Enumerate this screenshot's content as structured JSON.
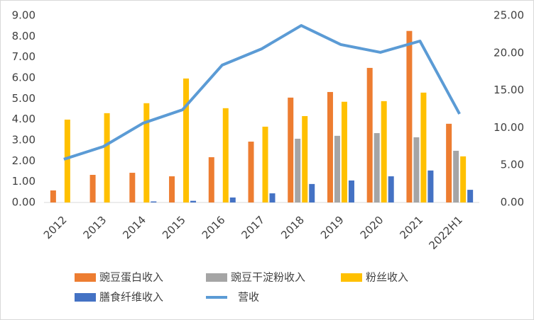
{
  "chart_data": {
    "type": "bar-line",
    "categories": [
      "2012",
      "2013",
      "2014",
      "2015",
      "2016",
      "2017",
      "2018",
      "2019",
      "2020",
      "2021",
      "2022H1"
    ],
    "series": [
      {
        "name": "豌豆蛋白收入",
        "color": "#ed7d31",
        "type": "bar",
        "values": [
          0.58,
          1.33,
          1.43,
          1.26,
          2.18,
          2.93,
          5.05,
          5.32,
          6.48,
          8.26,
          3.79
        ]
      },
      {
        "name": "豌豆干淀粉收入",
        "color": "#a5a5a5",
        "type": "bar",
        "values": [
          0,
          0,
          0,
          0,
          0,
          0,
          3.07,
          3.21,
          3.34,
          3.14,
          2.49
        ]
      },
      {
        "name": "粉丝收入",
        "color": "#ffc000",
        "type": "bar",
        "values": [
          3.99,
          4.3,
          4.78,
          5.97,
          4.54,
          3.65,
          4.16,
          4.85,
          4.88,
          5.29,
          2.22
        ]
      },
      {
        "name": "膳食纤维收入",
        "color": "#4472c4",
        "type": "bar",
        "values": [
          0,
          0,
          0.05,
          0.08,
          0.24,
          0.44,
          0.89,
          1.06,
          1.26,
          1.54,
          0.61
        ]
      },
      {
        "name": "营收",
        "color": "#5b9bd5",
        "type": "line",
        "axis": "y2",
        "values": [
          5.78,
          7.48,
          10.6,
          12.4,
          18.37,
          20.55,
          23.67,
          21.12,
          20.08,
          21.59,
          11.84
        ]
      }
    ],
    "ylim": [
      0,
      9
    ],
    "yticks": [
      {
        "value": 0,
        "label": "0.00"
      },
      {
        "value": 1,
        "label": "1.00"
      },
      {
        "value": 2,
        "label": "2.00"
      },
      {
        "value": 3,
        "label": "3.00"
      },
      {
        "value": 4,
        "label": "4.00"
      },
      {
        "value": 5,
        "label": "5.00"
      },
      {
        "value": 6,
        "label": "6.00"
      },
      {
        "value": 7,
        "label": "7.00"
      },
      {
        "value": 8,
        "label": "8.00"
      },
      {
        "value": 9,
        "label": "9.00"
      }
    ],
    "y2lim": [
      0,
      25
    ],
    "y2ticks": [
      {
        "value": 0,
        "label": "0.00"
      },
      {
        "value": 5,
        "label": "5.00"
      },
      {
        "value": 10,
        "label": "10.00"
      },
      {
        "value": 15,
        "label": "15.00"
      },
      {
        "value": 20,
        "label": "20.00"
      },
      {
        "value": 25,
        "label": "25.00"
      }
    ],
    "grid": false
  }
}
